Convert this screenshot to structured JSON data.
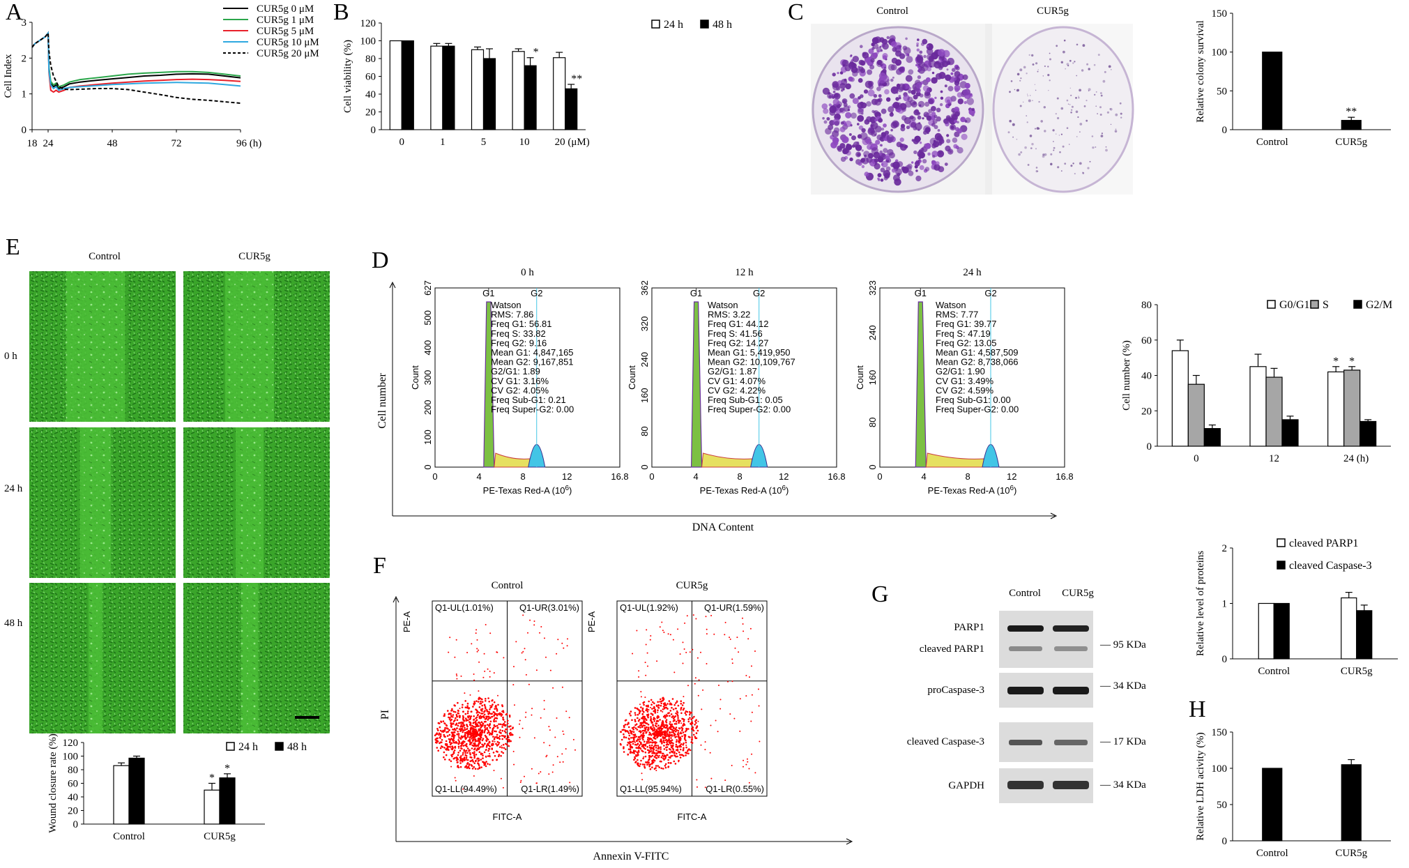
{
  "panel_labels": {
    "A": "A",
    "B": "B",
    "C": "C",
    "D": "D",
    "E": "E",
    "F": "F",
    "G": "G",
    "H": "H"
  },
  "colors": {
    "bar_black": "#000000",
    "bar_white": "#ffffff",
    "bar_grey": "#a6a6a6",
    "wound_green": "#3aa52a",
    "crystal_violet": "#7a2fa8",
    "dot_red": "#ff0000"
  },
  "chart_data": [
    {
      "id": "A",
      "type": "line",
      "xlabel": "",
      "ylabel": "Cell Index",
      "xticks": [
        "18",
        "24",
        "48",
        "72",
        "96 (h)"
      ],
      "yticks": [
        "0",
        "1",
        "2",
        "3"
      ],
      "xlim": [
        18,
        96
      ],
      "ylim": [
        0,
        3
      ],
      "series": [
        {
          "name": "CUR5g 0 μM",
          "color": "#000000",
          "style": "solid",
          "x": [
            18,
            19,
            21,
            23,
            24,
            24.3,
            25,
            26,
            27,
            28,
            30,
            32,
            36,
            42,
            48,
            54,
            60,
            66,
            72,
            78,
            84,
            90,
            96
          ],
          "y": [
            2.3,
            2.4,
            2.5,
            2.6,
            2.7,
            1.7,
            1.3,
            1.2,
            1.25,
            1.15,
            1.2,
            1.28,
            1.33,
            1.38,
            1.42,
            1.46,
            1.5,
            1.52,
            1.55,
            1.56,
            1.55,
            1.5,
            1.45
          ]
        },
        {
          "name": "CUR5g 1 μM",
          "color": "#2aa64a",
          "style": "solid",
          "x": [
            18,
            19,
            21,
            23,
            24,
            24.3,
            25,
            26,
            27,
            28,
            30,
            32,
            36,
            42,
            48,
            54,
            60,
            66,
            72,
            78,
            84,
            90,
            96
          ],
          "y": [
            2.3,
            2.4,
            2.5,
            2.6,
            2.7,
            1.75,
            1.35,
            1.25,
            1.3,
            1.2,
            1.25,
            1.33,
            1.4,
            1.45,
            1.5,
            1.55,
            1.58,
            1.6,
            1.62,
            1.62,
            1.6,
            1.55,
            1.5
          ]
        },
        {
          "name": "CUR5g 5 μM",
          "color": "#e8202a",
          "style": "solid",
          "x": [
            18,
            19,
            21,
            23,
            24,
            24.3,
            25,
            26,
            27,
            28,
            30,
            32,
            36,
            42,
            48,
            54,
            60,
            66,
            72,
            78,
            84,
            90,
            96
          ],
          "y": [
            2.3,
            2.4,
            2.5,
            2.6,
            2.7,
            1.6,
            1.1,
            1.05,
            1.1,
            1.05,
            1.1,
            1.18,
            1.22,
            1.26,
            1.3,
            1.33,
            1.36,
            1.38,
            1.4,
            1.41,
            1.4,
            1.38,
            1.35
          ]
        },
        {
          "name": "CUR5g 10 μM",
          "color": "#2ea8e0",
          "style": "solid",
          "x": [
            18,
            19,
            21,
            23,
            24,
            24.3,
            25,
            26,
            27,
            28,
            30,
            32,
            36,
            42,
            48,
            54,
            60,
            66,
            72,
            78,
            84,
            90,
            96
          ],
          "y": [
            2.3,
            2.4,
            2.5,
            2.6,
            2.7,
            1.65,
            1.25,
            1.15,
            1.2,
            1.1,
            1.15,
            1.18,
            1.2,
            1.23,
            1.26,
            1.28,
            1.3,
            1.31,
            1.32,
            1.31,
            1.3,
            1.26,
            1.22
          ]
        },
        {
          "name": "CUR5g 20 μM",
          "color": "#000000",
          "style": "dashed",
          "x": [
            18,
            19,
            21,
            23,
            24,
            24.3,
            25,
            26,
            27,
            28,
            30,
            32,
            36,
            42,
            48,
            54,
            60,
            66,
            72,
            78,
            84,
            90,
            96
          ],
          "y": [
            2.3,
            2.4,
            2.5,
            2.6,
            2.7,
            2.2,
            1.8,
            1.5,
            1.35,
            1.2,
            1.13,
            1.12,
            1.13,
            1.15,
            1.15,
            1.12,
            1.05,
            0.98,
            0.9,
            0.85,
            0.82,
            0.78,
            0.74
          ]
        }
      ]
    },
    {
      "id": "B",
      "type": "bar",
      "ylabel": "Cell viability (%)",
      "categories": [
        "0",
        "1",
        "5",
        "10",
        "20 (μM)"
      ],
      "yticks": [
        "0",
        "20",
        "40",
        "60",
        "80",
        "100",
        "120"
      ],
      "ylim": [
        0,
        120
      ],
      "series": [
        {
          "name": "24 h",
          "fill": "white",
          "values": [
            100,
            94,
            90,
            88,
            81
          ],
          "errors": [
            0,
            3,
            3,
            3,
            6
          ]
        },
        {
          "name": "48 h",
          "fill": "black",
          "values": [
            100,
            94,
            80,
            72,
            46
          ],
          "errors": [
            0,
            3,
            11,
            9,
            5
          ]
        }
      ],
      "annotations": [
        {
          "category": 3,
          "series": 1,
          "text": "*"
        },
        {
          "category": 4,
          "series": 1,
          "text": "**"
        }
      ]
    },
    {
      "id": "C",
      "type": "bar",
      "ylabel": "Relative colony survival",
      "categories": [
        "Control",
        "CUR5g"
      ],
      "yticks": [
        "0",
        "50",
        "100",
        "150"
      ],
      "ylim": [
        0,
        150
      ],
      "series": [
        {
          "name": "colony",
          "fill": "black",
          "values": [
            100,
            12
          ],
          "errors": [
            0,
            4
          ]
        }
      ],
      "annotations": [
        {
          "category": 1,
          "series": 0,
          "text": "**"
        }
      ]
    },
    {
      "id": "D-bar",
      "type": "bar",
      "ylabel": "Cell number (%)",
      "categories": [
        "0",
        "12",
        "24 (h)"
      ],
      "yticks": [
        "0",
        "20",
        "40",
        "60",
        "80"
      ],
      "ylim": [
        0,
        80
      ],
      "series": [
        {
          "name": "G0/G1",
          "fill": "white",
          "values": [
            54,
            45,
            42
          ],
          "errors": [
            6,
            7,
            3
          ]
        },
        {
          "name": "S",
          "fill": "grey",
          "values": [
            35,
            39,
            43
          ],
          "errors": [
            5,
            5,
            2
          ]
        },
        {
          "name": "G2/M",
          "fill": "black",
          "values": [
            10,
            15,
            14
          ],
          "errors": [
            2,
            2,
            1
          ]
        }
      ],
      "annotations": [
        {
          "category": 2,
          "series": 0,
          "text": "*"
        },
        {
          "category": 2,
          "series": 1,
          "text": "*"
        }
      ]
    },
    {
      "id": "E-bar",
      "type": "bar",
      "ylabel": "Wound closure rate (%)",
      "categories": [
        "Control",
        "CUR5g"
      ],
      "yticks": [
        "0",
        "20",
        "40",
        "60",
        "80",
        "100",
        "120"
      ],
      "ylim": [
        0,
        120
      ],
      "series": [
        {
          "name": "24 h",
          "fill": "white",
          "values": [
            86,
            50
          ],
          "errors": [
            4,
            10
          ]
        },
        {
          "name": "48 h",
          "fill": "black",
          "values": [
            97,
            68
          ],
          "errors": [
            3,
            6
          ]
        }
      ],
      "annotations": [
        {
          "category": 1,
          "series": 0,
          "text": "*"
        },
        {
          "category": 1,
          "series": 1,
          "text": "*"
        }
      ]
    },
    {
      "id": "G-bar",
      "type": "bar",
      "ylabel": "Relative level of proteins",
      "categories": [
        "Control",
        "CUR5g"
      ],
      "yticks": [
        "0",
        "1",
        "2"
      ],
      "ylim": [
        0,
        2
      ],
      "series": [
        {
          "name": "cleaved PARP1",
          "fill": "white",
          "values": [
            1,
            1.1
          ],
          "errors": [
            0,
            0.1
          ]
        },
        {
          "name": "cleaved  Caspase-3",
          "fill": "black",
          "values": [
            1,
            0.87
          ],
          "errors": [
            0,
            0.1
          ]
        }
      ]
    },
    {
      "id": "H",
      "type": "bar",
      "ylabel": "Relative LDH acivity (%)",
      "categories": [
        "Control",
        "CUR5g"
      ],
      "yticks": [
        "0",
        "50",
        "100",
        "150"
      ],
      "ylim": [
        0,
        150
      ],
      "series": [
        {
          "name": "LDH",
          "fill": "black",
          "values": [
            100,
            105
          ],
          "errors": [
            0,
            7
          ]
        }
      ]
    }
  ],
  "panel_c": {
    "control_label": "Control",
    "cur5g_label": "CUR5g"
  },
  "panel_d": {
    "x_axis_title": "DNA Content",
    "y_axis_title": "Cell number",
    "xlabel": "PE-Texas Red-A",
    "xlabel_exp": "(10",
    "xlabel_exp_sup": "6",
    "xlabel_exp_close": ")",
    "xticks": [
      "0",
      "4",
      "8",
      "12",
      "16.8"
    ],
    "ylabel": "Count",
    "g1": "G1",
    "g2": "G2",
    "histograms": [
      {
        "title": "0 h",
        "yticks": [
          "0",
          "100",
          "200",
          "300",
          "400",
          "500",
          "627"
        ],
        "stats": [
          "Watson",
          "RMS: 7.86",
          "Freq G1: 56.81",
          "Freq S: 33.82",
          "Freq G2: 9.16",
          "Mean G1: 4,847,165",
          "Mean G2: 9,167,851",
          "G2/G1: 1.89",
          "CV G1: 3.16%",
          "CV G2: 4.05%",
          "Freq Sub-G1: 0.21",
          "Freq Super-G2: 0.00"
        ]
      },
      {
        "title": "12 h",
        "yticks": [
          "0",
          "80",
          "160",
          "240",
          "320",
          "362"
        ],
        "stats": [
          "Watson",
          "RMS: 3.22",
          "Freq G1: 44.12",
          "Freq S: 41.56",
          "Freq G2: 14.27",
          "Mean G1: 5,419,950",
          "Mean G2: 10,109,767",
          "G2/G1: 1.87",
          "CV G1: 4.07%",
          "CV G2: 4.22%",
          "Freq Sub-G1: 0.05",
          "Freq Super-G2: 0.00"
        ]
      },
      {
        "title": "24 h",
        "yticks": [
          "0",
          "80",
          "160",
          "240",
          "323"
        ],
        "stats": [
          "Watson",
          "RMS: 7.77",
          "Freq G1: 39.77",
          "Freq S: 47.19",
          "Freq G2: 13.05",
          "Mean G1: 4,587,509",
          "Mean G2: 8,738,066",
          "G2/G1: 1.90",
          "CV G1: 3.49%",
          "CV G2: 4.59%",
          "Freq Sub-G1: 0.00",
          "Freq Super-G2: 0.00"
        ]
      }
    ]
  },
  "panel_e": {
    "col_control": "Control",
    "col_cur5g": "CUR5g",
    "rows": [
      "0 h",
      "24 h",
      "48 h"
    ]
  },
  "panel_f": {
    "x_axis_title": "Annexin V-FITC",
    "y_axis_title": "PI",
    "xlabel": "FITC-A",
    "ylabel": "PE-A",
    "plots": [
      {
        "title": "Control",
        "ul": "Q1-UL(1.01%)",
        "ur": "Q1-UR(3.01%)",
        "ll": "Q1-LL(94.49%)",
        "lr": "Q1-LR(1.49%)"
      },
      {
        "title": "CUR5g",
        "ul": "Q1-UL(1.92%)",
        "ur": "Q1-UR(1.59%)",
        "ll": "Q1-LL(95.94%)",
        "lr": "Q1-LR(0.55%)"
      }
    ]
  },
  "panel_g": {
    "col_control": "Control",
    "col_cur5g": "CUR5g",
    "bands": [
      "PARP1",
      "cleaved PARP1",
      "proCaspase-3",
      "cleaved  Caspase-3",
      "GAPDH"
    ],
    "markers": [
      "— 95 KDa",
      "— 34 KDa",
      "— 17 KDa",
      "— 34 KDa"
    ]
  }
}
